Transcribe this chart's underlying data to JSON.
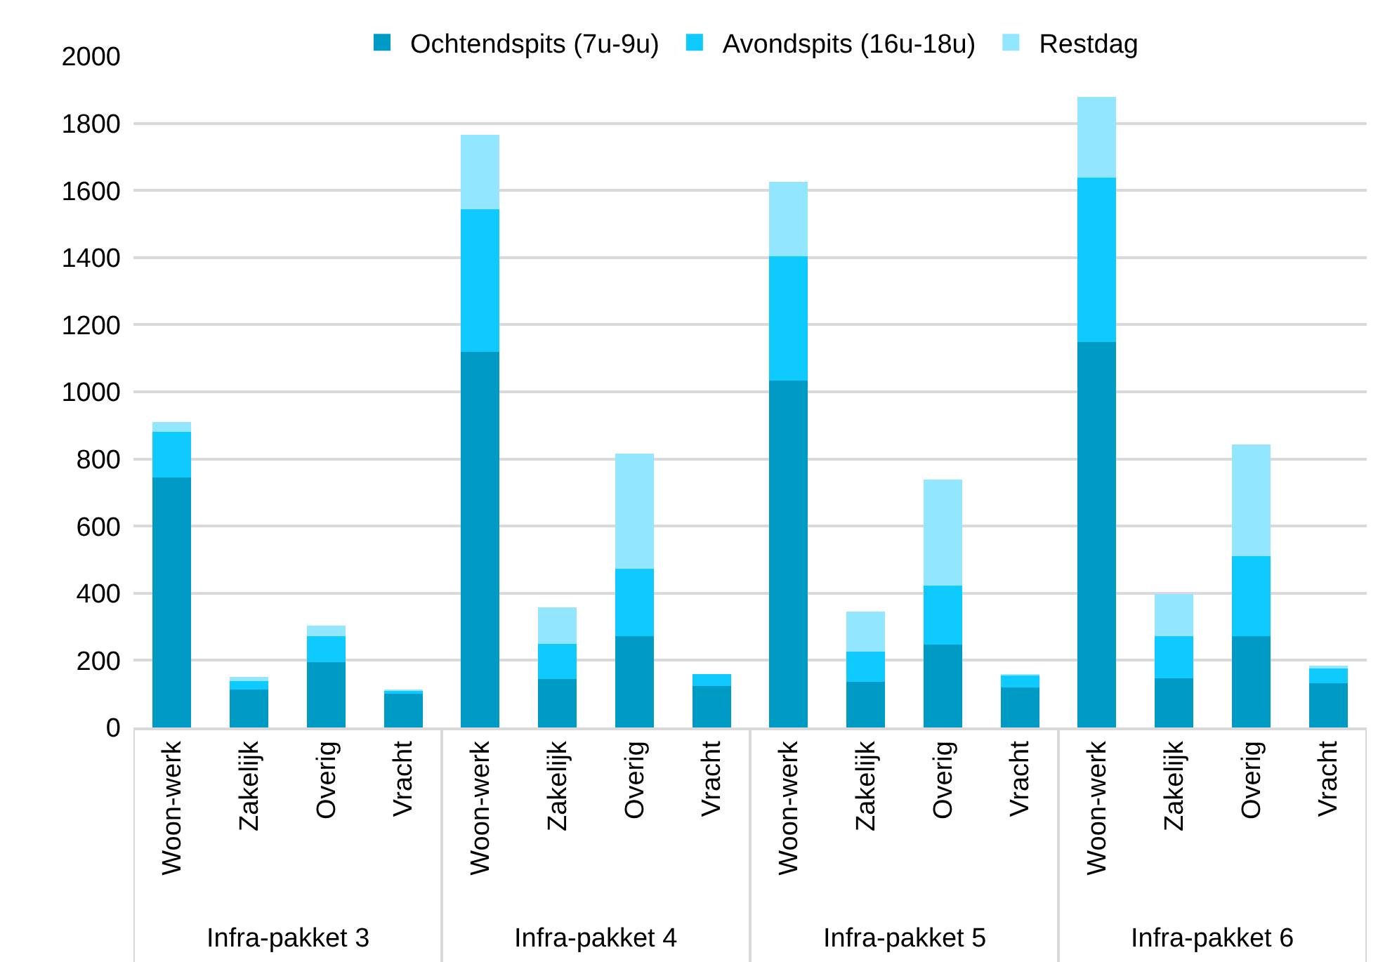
{
  "chart_data": {
    "type": "bar",
    "stacked": true,
    "categories": [
      "Woon-werk",
      "Zakelijk",
      "Overig",
      "Vracht",
      "Woon-werk",
      "Zakelijk",
      "Overig",
      "Vracht",
      "Woon-werk",
      "Zakelijk",
      "Overig",
      "Vracht",
      "Woon-werk",
      "Zakelijk",
      "Overig",
      "Vracht"
    ],
    "series": [
      {
        "name": "Ochtendspits (7u-9u)",
        "color": "#009bc4",
        "values": [
          745,
          114,
          195,
          100,
          1120,
          144,
          272,
          124,
          1033,
          136,
          246,
          119,
          1149,
          147,
          271,
          132
        ]
      },
      {
        "name": "Avondspits (16u-18u)",
        "color": "#0fcaff",
        "values": [
          135,
          24,
          76,
          9,
          425,
          104,
          200,
          36,
          371,
          91,
          177,
          36,
          489,
          124,
          239,
          44
        ]
      },
      {
        "name": "Restdag",
        "color": "#92e6ff",
        "values": [
          30,
          12,
          32,
          3,
          220,
          109,
          343,
          0,
          221,
          118,
          316,
          4,
          240,
          126,
          334,
          5
        ]
      }
    ],
    "annotations": [
      "Infra-pakket 3",
      "Infra-pakket 4",
      "Infra-pakket 5",
      "Infra-pakket 6"
    ],
    "ylim": [
      0,
      2000
    ],
    "yticks": [
      0,
      200,
      400,
      600,
      800,
      1000,
      1200,
      1400,
      1600,
      1800,
      2000
    ],
    "grid": "y",
    "legend": "top"
  }
}
